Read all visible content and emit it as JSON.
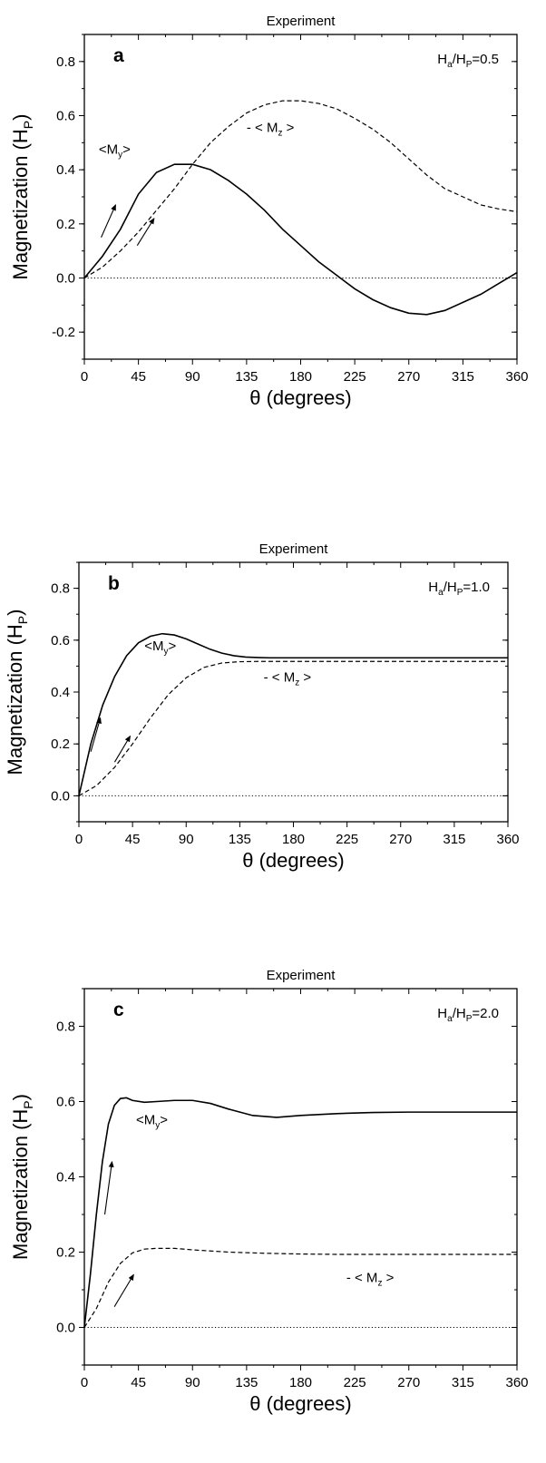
{
  "chart_data": [
    {
      "type": "line",
      "title": "Experiment",
      "panel": "a",
      "ratio": {
        "base": "H",
        "sub1": "a",
        "mid": "/H",
        "sub2": "P",
        "suffix": "=0.5"
      },
      "xlabel": "θ (degrees)",
      "ylabel": "Magnetization (H",
      "ylabel_sub": "P",
      "ylabel_end": ")",
      "xlim": [
        0,
        360
      ],
      "ylim": [
        -0.3,
        0.9
      ],
      "xticks": [
        0,
        45,
        90,
        135,
        180,
        225,
        270,
        315,
        360
      ],
      "yticks": [
        -0.2,
        0.0,
        0.2,
        0.4,
        0.6,
        0.8
      ],
      "ytick_labels": [
        "-0.2",
        "0.0",
        "0.2",
        "0.4",
        "0.6",
        "0.8"
      ],
      "zero_line": true,
      "series": [
        {
          "label": "<M",
          "label_sub": "y",
          "label_end": ">",
          "style": "solid",
          "label_pos": [
            12,
            0.46
          ],
          "x": [
            0,
            15,
            30,
            45,
            60,
            75,
            90,
            105,
            120,
            135,
            150,
            165,
            180,
            195,
            210,
            225,
            240,
            255,
            270,
            285,
            300,
            315,
            330,
            345,
            360
          ],
          "y": [
            0.0,
            0.08,
            0.18,
            0.31,
            0.39,
            0.42,
            0.42,
            0.4,
            0.36,
            0.31,
            0.25,
            0.18,
            0.12,
            0.06,
            0.01,
            -0.04,
            -0.08,
            -0.11,
            -0.13,
            -0.135,
            -0.12,
            -0.09,
            -0.06,
            -0.02,
            0.02
          ]
        },
        {
          "label": "- < M",
          "label_sub": "z",
          "label_end": " >",
          "style": "dashed",
          "label_pos": [
            135,
            0.54
          ],
          "x": [
            0,
            15,
            30,
            45,
            60,
            75,
            90,
            105,
            120,
            135,
            150,
            165,
            180,
            195,
            210,
            225,
            240,
            255,
            270,
            285,
            300,
            315,
            330,
            345,
            360
          ],
          "y": [
            0.0,
            0.04,
            0.1,
            0.17,
            0.25,
            0.33,
            0.42,
            0.5,
            0.56,
            0.61,
            0.64,
            0.655,
            0.655,
            0.645,
            0.625,
            0.59,
            0.55,
            0.5,
            0.44,
            0.38,
            0.33,
            0.3,
            0.27,
            0.255,
            0.245
          ]
        }
      ],
      "arrows": [
        {
          "from": [
            14,
            0.15
          ],
          "to": [
            26,
            0.27
          ]
        },
        {
          "from": [
            44,
            0.12
          ],
          "to": [
            58,
            0.22
          ]
        }
      ]
    },
    {
      "type": "line",
      "title": "Experiment",
      "panel": "b",
      "ratio": {
        "base": "H",
        "sub1": "a",
        "mid": "/H",
        "sub2": "P",
        "suffix": "=1.0"
      },
      "xlabel": "θ (degrees)",
      "ylabel": "Magnetization (H",
      "ylabel_sub": "P",
      "ylabel_end": ")",
      "xlim": [
        0,
        360
      ],
      "ylim": [
        -0.1,
        0.9
      ],
      "xticks": [
        0,
        45,
        90,
        135,
        180,
        225,
        270,
        315,
        360
      ],
      "yticks": [
        0.0,
        0.2,
        0.4,
        0.6,
        0.8
      ],
      "ytick_labels": [
        "0.0",
        "0.2",
        "0.4",
        "0.6",
        "0.8"
      ],
      "zero_line": true,
      "series": [
        {
          "label": "<M",
          "label_sub": "y",
          "label_end": ">",
          "style": "solid",
          "label_pos": [
            55,
            0.56
          ],
          "x": [
            0,
            10,
            20,
            30,
            40,
            50,
            60,
            70,
            80,
            90,
            100,
            110,
            120,
            130,
            140,
            150,
            160,
            180,
            200,
            225,
            250,
            270,
            300,
            330,
            360
          ],
          "y": [
            0.0,
            0.2,
            0.35,
            0.46,
            0.54,
            0.59,
            0.615,
            0.625,
            0.62,
            0.605,
            0.585,
            0.565,
            0.55,
            0.54,
            0.535,
            0.533,
            0.532,
            0.532,
            0.532,
            0.532,
            0.532,
            0.532,
            0.532,
            0.532,
            0.532
          ]
        },
        {
          "label": "- < M",
          "label_sub": "z",
          "label_end": " >",
          "style": "dashed",
          "label_pos": [
            155,
            0.44
          ],
          "x": [
            0,
            15,
            30,
            45,
            60,
            75,
            90,
            105,
            120,
            135,
            150,
            180,
            210,
            240,
            270,
            300,
            330,
            360
          ],
          "y": [
            0.0,
            0.04,
            0.11,
            0.2,
            0.3,
            0.39,
            0.455,
            0.495,
            0.512,
            0.517,
            0.518,
            0.518,
            0.518,
            0.518,
            0.518,
            0.518,
            0.518,
            0.518
          ]
        }
      ],
      "arrows": [
        {
          "from": [
            10,
            0.17
          ],
          "to": [
            18,
            0.3
          ]
        },
        {
          "from": [
            30,
            0.13
          ],
          "to": [
            43,
            0.23
          ]
        }
      ]
    },
    {
      "type": "line",
      "title": "Experiment",
      "panel": "c",
      "ratio": {
        "base": "H",
        "sub1": "a",
        "mid": "/H",
        "sub2": "P",
        "suffix": "=2.0"
      },
      "xlabel": "θ (degrees)",
      "ylabel": "Magnetization (H",
      "ylabel_sub": "P",
      "ylabel_end": ")",
      "xlim": [
        0,
        360
      ],
      "ylim": [
        -0.1,
        0.9
      ],
      "xticks": [
        0,
        45,
        90,
        135,
        180,
        225,
        270,
        315,
        360
      ],
      "yticks": [
        0.0,
        0.2,
        0.4,
        0.6,
        0.8
      ],
      "ytick_labels": [
        "0.0",
        "0.2",
        "0.4",
        "0.6",
        "0.8"
      ],
      "zero_line": true,
      "series": [
        {
          "label": "<M",
          "label_sub": "y",
          "label_end": ">",
          "style": "solid",
          "label_pos": [
            43,
            0.54
          ],
          "x": [
            0,
            5,
            10,
            15,
            20,
            25,
            30,
            35,
            40,
            50,
            60,
            75,
            90,
            105,
            120,
            140,
            160,
            180,
            210,
            240,
            270,
            300,
            330,
            360
          ],
          "y": [
            0.0,
            0.14,
            0.3,
            0.44,
            0.54,
            0.59,
            0.608,
            0.61,
            0.603,
            0.598,
            0.6,
            0.603,
            0.603,
            0.595,
            0.58,
            0.563,
            0.558,
            0.563,
            0.568,
            0.571,
            0.572,
            0.572,
            0.572,
            0.572
          ]
        },
        {
          "label": "- < M",
          "label_sub": "z",
          "label_end": " >",
          "style": "dashed",
          "label_pos": [
            218,
            0.12
          ],
          "x": [
            0,
            10,
            20,
            30,
            40,
            50,
            60,
            75,
            90,
            105,
            120,
            150,
            180,
            210,
            240,
            270,
            300,
            330,
            360
          ],
          "y": [
            0.0,
            0.05,
            0.12,
            0.17,
            0.198,
            0.208,
            0.21,
            0.21,
            0.206,
            0.203,
            0.2,
            0.197,
            0.195,
            0.194,
            0.194,
            0.194,
            0.194,
            0.194,
            0.194
          ]
        }
      ],
      "arrows": [
        {
          "from": [
            17,
            0.3
          ],
          "to": [
            23,
            0.44
          ]
        },
        {
          "from": [
            25,
            0.055
          ],
          "to": [
            41,
            0.14
          ]
        }
      ]
    }
  ]
}
